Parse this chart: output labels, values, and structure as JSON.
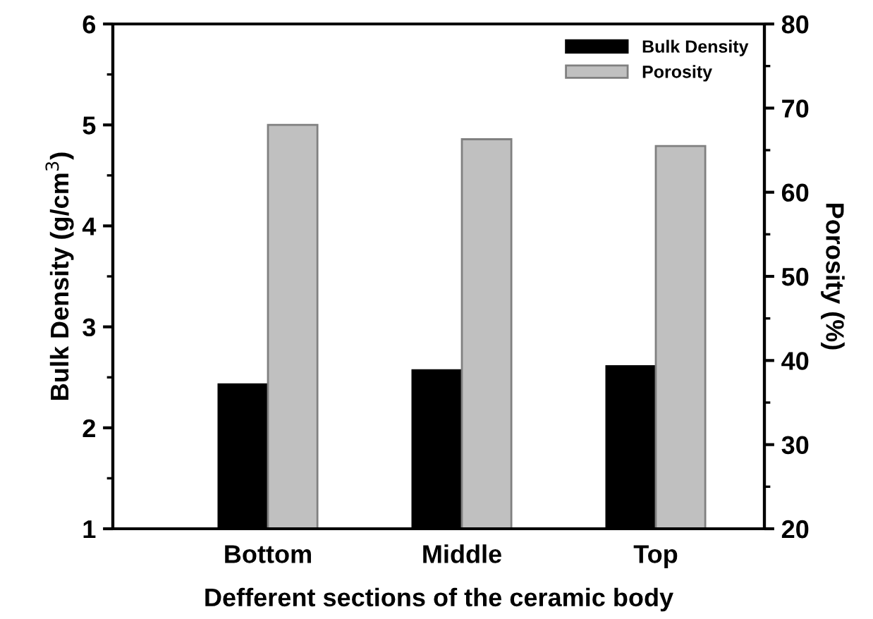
{
  "chart_data": {
    "type": "bar",
    "xlabel": "Defferent sections of the ceramic body",
    "ylabel": "Bulk Density (g/cm$^{3}$)",
    "y2label": "Porosity (%)",
    "categories": [
      "Bottom",
      "Middle",
      "Top"
    ],
    "series": [
      {
        "name": "Bulk Density",
        "color": "#000000",
        "values": [
          2.43,
          2.57,
          2.61
        ]
      },
      {
        "name": "Porosity",
        "color": "#c0c0c0",
        "values": [
          68.0,
          66.3,
          65.5
        ],
        "axis": "y2"
      }
    ],
    "ylim": [
      1,
      6
    ],
    "yticks": [
      1,
      2,
      3,
      4,
      5,
      6
    ],
    "y2lim": [
      20,
      80
    ],
    "y2ticks": [
      20,
      30,
      40,
      50,
      60,
      70,
      80
    ],
    "legend": "top right",
    "grid": false
  }
}
